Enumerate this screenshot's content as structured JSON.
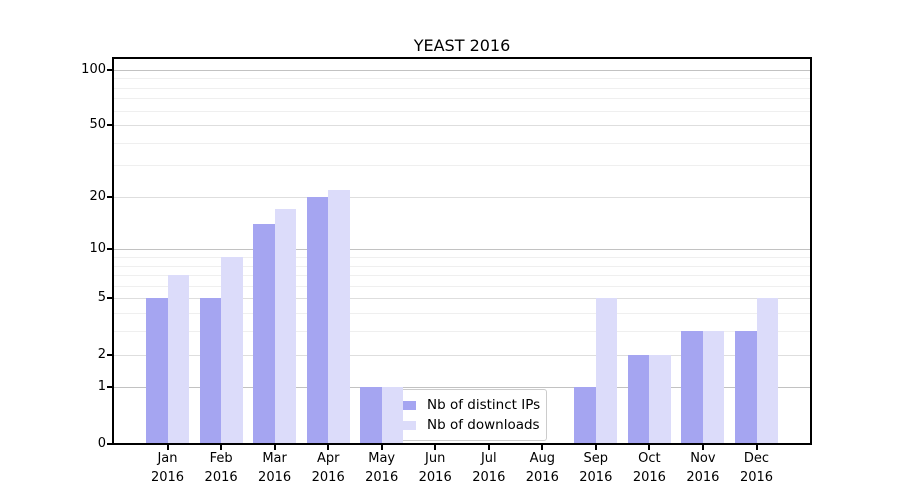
{
  "chart_data": {
    "type": "bar",
    "title": "YEAST 2016",
    "categories": [
      "Jan 2016",
      "Feb 2016",
      "Mar 2016",
      "Apr 2016",
      "May 2016",
      "Jun 2016",
      "Jul 2016",
      "Aug 2016",
      "Sep 2016",
      "Oct 2016",
      "Nov 2016",
      "Dec 2016"
    ],
    "series": [
      {
        "name": "Nb of distinct IPs",
        "color": "#a5a5f1",
        "values": [
          5,
          5,
          14,
          20,
          1,
          0,
          0,
          0,
          1,
          2,
          3,
          3
        ]
      },
      {
        "name": "Nb of downloads",
        "color": "#dcdcfa",
        "values": [
          7,
          9,
          17,
          22,
          1,
          0,
          0,
          0,
          5,
          2,
          3,
          5
        ]
      }
    ],
    "y_ticks": [
      0,
      1,
      2,
      5,
      10,
      20,
      50,
      100
    ],
    "y_minor_ticks": [
      3,
      4,
      6,
      7,
      8,
      9,
      30,
      40,
      60,
      70,
      80,
      90
    ],
    "y_scale": "log10(1+x)",
    "ylim": [
      0,
      115
    ],
    "xlabel": "",
    "ylabel": "",
    "grid": "horizontal",
    "legend_position": "inside-bottom-left-of-center"
  }
}
